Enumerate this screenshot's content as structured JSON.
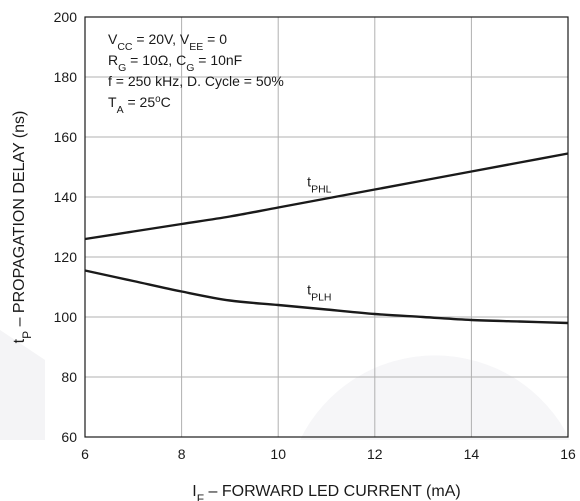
{
  "chart_data": {
    "type": "line",
    "xlabel": {
      "main": "I",
      "sub": "F",
      "rest": " – FORWARD LED CURRENT (mA)"
    },
    "ylabel": {
      "main": "t",
      "sub": "P",
      "rest": " – PROPAGATION DELAY (ns)"
    },
    "xlim": [
      6,
      16
    ],
    "ylim": [
      60,
      200
    ],
    "xticks": [
      6,
      8,
      10,
      12,
      14,
      16
    ],
    "yticks": [
      60,
      80,
      100,
      120,
      140,
      160,
      180,
      200
    ],
    "grid": true,
    "conditions": [
      [
        {
          "t": "V"
        },
        {
          "t": "CC",
          "sub": true
        },
        {
          "t": " = 20V, V"
        },
        {
          "t": "EE",
          "sub": true
        },
        {
          "t": " = 0"
        }
      ],
      [
        {
          "t": "R"
        },
        {
          "t": "G",
          "sub": true
        },
        {
          "t": " = 10Ω, C"
        },
        {
          "t": "G",
          "sub": true
        },
        {
          "t": " = 10nF"
        }
      ],
      [
        {
          "t": "f = 250 kHz, D. Cycle = 50%"
        }
      ],
      [
        {
          "t": "T"
        },
        {
          "t": "A",
          "sub": true
        },
        {
          "t": " = 25"
        },
        {
          "t": "o",
          "sup": true
        },
        {
          "t": "C"
        }
      ]
    ],
    "series": [
      {
        "name": {
          "main": "t",
          "sub": "PHL"
        },
        "x": [
          6,
          7,
          8,
          9,
          10,
          11,
          12,
          13,
          14,
          15,
          16
        ],
        "values": [
          126,
          128.5,
          131,
          133.5,
          136.5,
          139.5,
          142.5,
          145.5,
          148.5,
          151.5,
          154.5
        ]
      },
      {
        "name": {
          "main": "t",
          "sub": "PLH"
        },
        "x": [
          6,
          7,
          8,
          9,
          10,
          11,
          12,
          13,
          14,
          15,
          16
        ],
        "values": [
          115.5,
          112,
          108.5,
          105.5,
          104,
          102.5,
          101,
          100,
          99,
          98.5,
          98
        ]
      }
    ],
    "colors": {
      "line": "#1a1a1a",
      "grid": "#b0b0b0",
      "axis": "#1a1a1a"
    }
  }
}
